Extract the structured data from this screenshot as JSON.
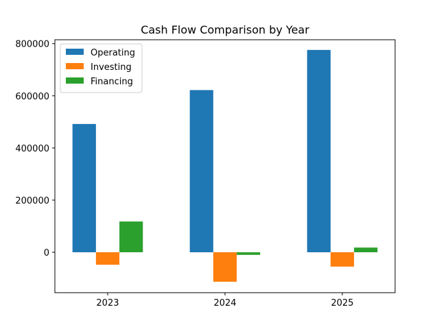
{
  "chart_data": {
    "type": "bar",
    "title": "Cash Flow Comparison by Year",
    "xlabel": "",
    "ylabel": "",
    "categories": [
      "2023",
      "2024",
      "2025"
    ],
    "series": [
      {
        "name": "Operating",
        "values": [
          492000,
          622000,
          776000
        ],
        "color": "#1f77b4"
      },
      {
        "name": "Investing",
        "values": [
          -48000,
          -113000,
          -55000
        ],
        "color": "#ff7f0e"
      },
      {
        "name": "Financing",
        "values": [
          118000,
          -10000,
          18000
        ],
        "color": "#2ca02c"
      }
    ],
    "ylim": [
      -155000,
      815000
    ],
    "yticks": [
      0,
      200000,
      400000,
      600000,
      800000
    ],
    "ytick_labels": [
      "0",
      "200000",
      "400000",
      "600000",
      "800000"
    ],
    "grid": false,
    "legend_position": "upper-left"
  }
}
